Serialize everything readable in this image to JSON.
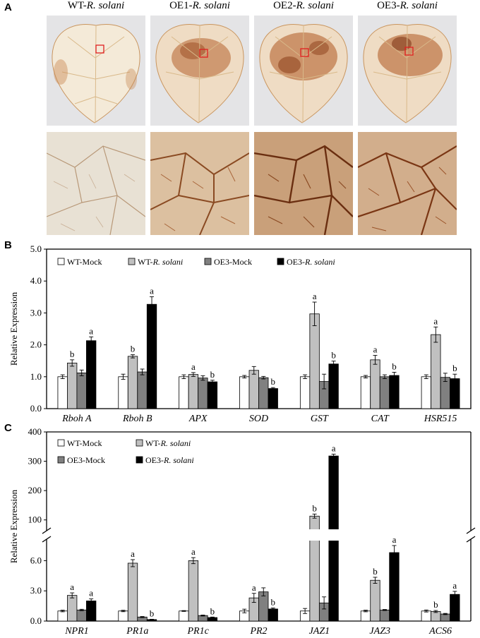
{
  "panels": {
    "a": "A",
    "b": "B",
    "c": "C"
  },
  "photos": [
    {
      "prefix": "WT-",
      "species": "R. solani"
    },
    {
      "prefix": "OE1-",
      "species": "R. solani"
    },
    {
      "prefix": "OE2-",
      "species": "R. solani"
    },
    {
      "prefix": "OE3-",
      "species": "R. solani"
    }
  ],
  "colors": {
    "wt_mock": "#ffffff",
    "wt_rsolani": "#c0c0c0",
    "oe3_mock": "#808080",
    "oe3_rsolani": "#000000",
    "leaf_background": "#e4e4e6",
    "lesion_brown": "#b4622e",
    "marker_red": "#e02020"
  },
  "legend": [
    {
      "prefix": "WT-Mock",
      "species": ""
    },
    {
      "prefix": "WT-",
      "species": "R. solani"
    },
    {
      "prefix": "OE3-Mock",
      "species": ""
    },
    {
      "prefix": "OE3-",
      "species": "R. solani"
    }
  ],
  "chart_data": [
    {
      "type": "bar",
      "panel": "B",
      "ylabel": "Relative Expression",
      "ylim": [
        0,
        5.0
      ],
      "yticks": [
        "0.0",
        "1.0",
        "2.0",
        "3.0",
        "4.0",
        "5.0"
      ],
      "categories": [
        "Rboh A",
        "Rboh B",
        "APX",
        "SOD",
        "GST",
        "CAT",
        "HSR515"
      ],
      "series": [
        {
          "name": "WT-Mock",
          "values": [
            1.0,
            1.0,
            1.0,
            1.0,
            1.0,
            1.0,
            1.0
          ],
          "errors": [
            0.06,
            0.08,
            0.06,
            0.04,
            0.06,
            0.04,
            0.06
          ],
          "labels": [
            "",
            "",
            "",
            "",
            "",
            "",
            ""
          ]
        },
        {
          "name": "WT-R. solani",
          "values": [
            1.43,
            1.64,
            1.07,
            1.2,
            2.97,
            1.53,
            2.32
          ],
          "errors": [
            0.1,
            0.05,
            0.06,
            0.12,
            0.37,
            0.14,
            0.24
          ],
          "labels": [
            "b",
            "b",
            "a",
            "",
            "a",
            "a",
            "a"
          ]
        },
        {
          "name": "OE3-Mock",
          "values": [
            1.12,
            1.15,
            0.96,
            0.97,
            0.85,
            1.0,
            0.98
          ],
          "errors": [
            0.09,
            0.09,
            0.07,
            0.04,
            0.23,
            0.06,
            0.13
          ],
          "labels": [
            "",
            "",
            "",
            "",
            "",
            "",
            ""
          ]
        },
        {
          "name": "OE3-R. solani",
          "values": [
            2.13,
            3.27,
            0.84,
            0.63,
            1.4,
            1.04,
            0.94
          ],
          "errors": [
            0.12,
            0.24,
            0.05,
            0.03,
            0.09,
            0.1,
            0.14
          ],
          "labels": [
            "a",
            "a",
            "b",
            "b",
            "b",
            "b",
            "b"
          ]
        }
      ]
    },
    {
      "type": "bar",
      "panel": "C",
      "ylabel": "Relative Expression",
      "axis_break": true,
      "ylim_lower": [
        0,
        7.5
      ],
      "yticks_lower": [
        "0.0",
        "3.0",
        "6.0"
      ],
      "ylim_upper": [
        80,
        400
      ],
      "yticks_upper": [
        "100",
        "200",
        "300",
        "400"
      ],
      "categories": [
        "NPR1",
        "PR1a",
        "PR1c",
        "PR2",
        "JAZ1",
        "JAZ3",
        "ACS6"
      ],
      "series": [
        {
          "name": "WT-Mock",
          "values": [
            1.0,
            1.0,
            1.0,
            1.0,
            1.0,
            1.0,
            1.0
          ],
          "errors": [
            0.08,
            0.07,
            0.04,
            0.18,
            0.25,
            0.08,
            0.1
          ],
          "labels": [
            "",
            "",
            "",
            "",
            "",
            "",
            ""
          ]
        },
        {
          "name": "WT-R. solani",
          "values": [
            2.55,
            5.75,
            6.0,
            2.3,
            113,
            4.05,
            0.95
          ],
          "errors": [
            0.25,
            0.35,
            0.3,
            0.45,
            7,
            0.3,
            0.1
          ],
          "labels": [
            "a",
            "a",
            "a",
            "a",
            "b",
            "b",
            "b"
          ]
        },
        {
          "name": "OE3-Mock",
          "values": [
            1.1,
            0.4,
            0.55,
            2.9,
            1.8,
            1.1,
            0.7
          ],
          "errors": [
            0.07,
            0.05,
            0.05,
            0.4,
            0.6,
            0.05,
            0.06
          ],
          "labels": [
            "",
            "",
            "",
            "",
            "",
            "",
            ""
          ]
        },
        {
          "name": "OE3-R. solani",
          "values": [
            2.0,
            0.15,
            0.35,
            1.2,
            318,
            6.8,
            2.65
          ],
          "errors": [
            0.2,
            0.03,
            0.05,
            0.1,
            6,
            0.7,
            0.3
          ],
          "labels": [
            "a",
            "b",
            "b",
            "b",
            "a",
            "a",
            "a"
          ]
        }
      ]
    }
  ]
}
